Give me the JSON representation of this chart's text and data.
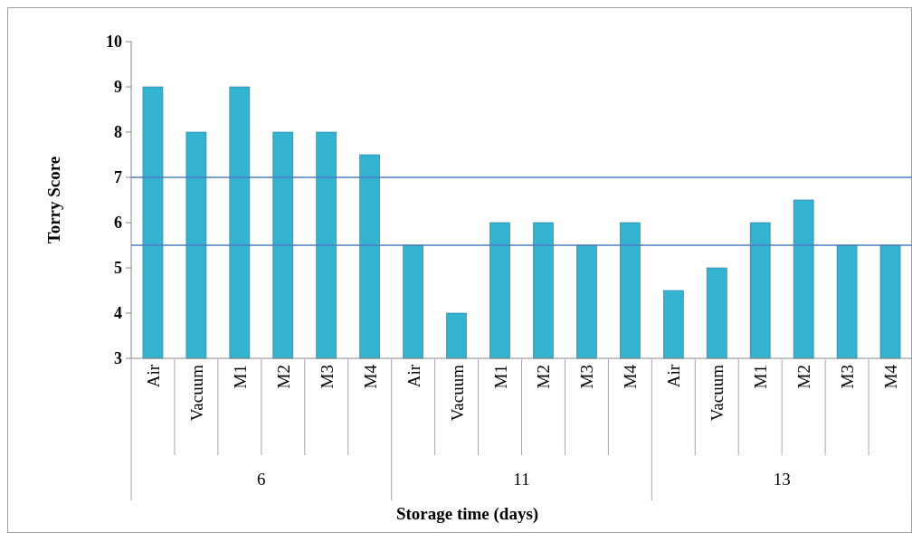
{
  "chart_data": {
    "type": "bar",
    "xlabel": "Storage time (days)",
    "ylabel": "Torry Score",
    "categories": [
      "Air",
      "Vacuum",
      "M1",
      "M2",
      "M3",
      "M4",
      "Air",
      "Vacuum",
      "M1",
      "M2",
      "M3",
      "M4",
      "Air",
      "Vacuum",
      "M1",
      "M2",
      "M3",
      "M4"
    ],
    "values": [
      9,
      8,
      9,
      8,
      8,
      7.5,
      5.5,
      4,
      6,
      6,
      5.5,
      6,
      4.5,
      5,
      6,
      6.5,
      5.5,
      5.5
    ],
    "color": "#33b2d1",
    "ylim": [
      3,
      10
    ],
    "yticks": [
      3,
      4,
      5,
      6,
      7,
      8,
      9,
      10
    ],
    "ref_lines": [
      {
        "axis": "y",
        "value": 7,
        "color": "#4a7ebb"
      },
      {
        "axis": "y",
        "value": 5.5,
        "color": "#4a7ebb"
      }
    ],
    "annotations": [
      "6",
      "11",
      "13"
    ],
    "grid": false
  }
}
